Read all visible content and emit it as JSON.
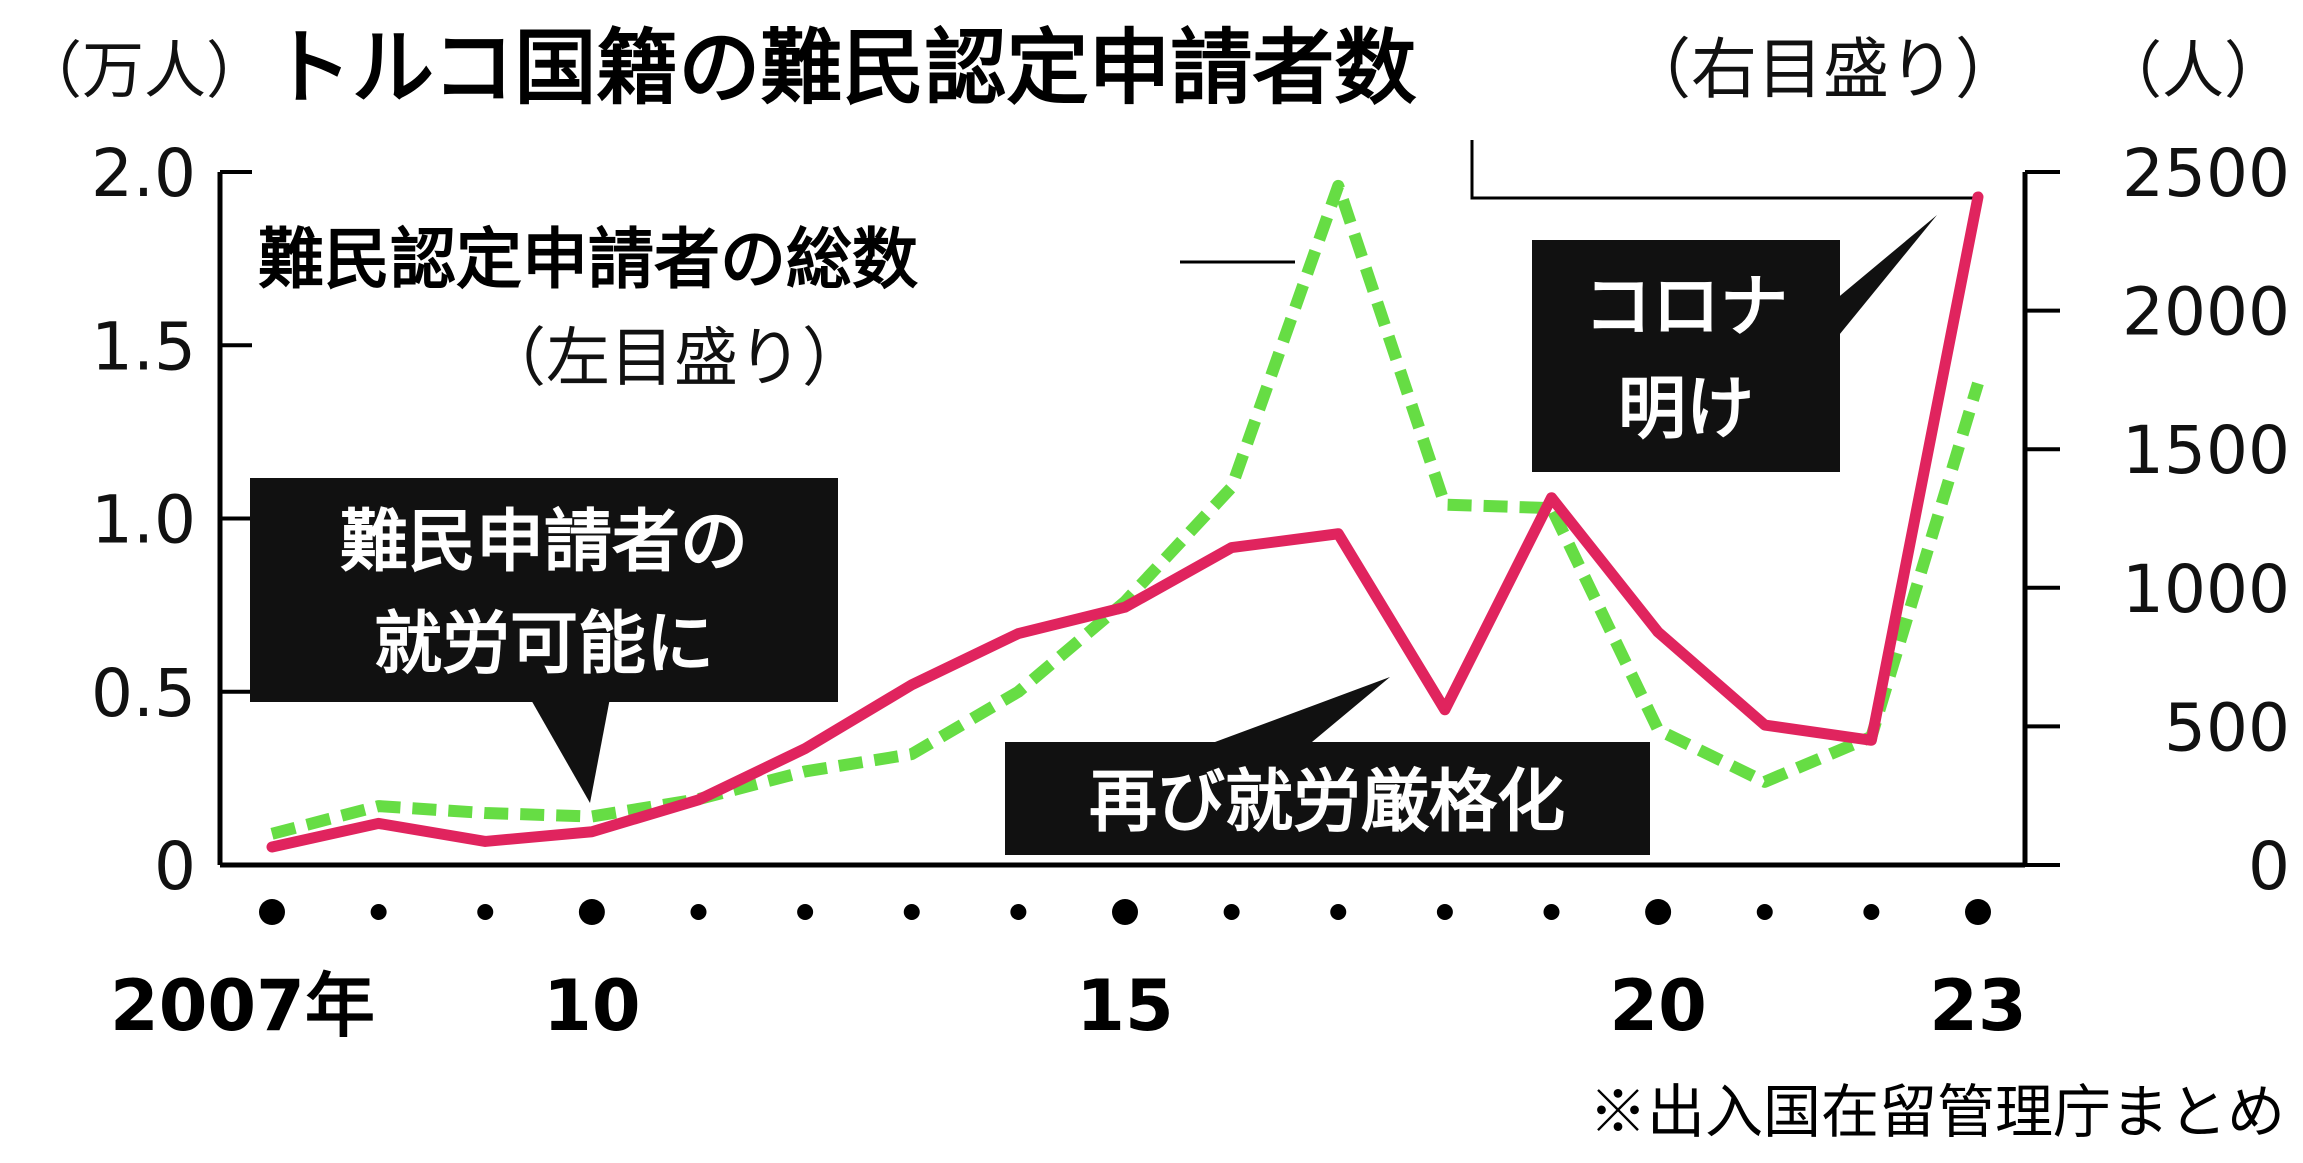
{
  "chart_data": {
    "type": "line",
    "title": "トルコ国籍の難民認定申請者数",
    "title_suffix": "（右目盛り）",
    "left_unit": "（万人）",
    "right_unit": "（人）",
    "x": [
      2007,
      2008,
      2009,
      2010,
      2011,
      2012,
      2013,
      2014,
      2015,
      2016,
      2017,
      2018,
      2019,
      2020,
      2021,
      2022,
      2023
    ],
    "x_major_labels": [
      {
        "year": 2007,
        "label": "2007年"
      },
      {
        "year": 2010,
        "label": "10"
      },
      {
        "year": 2015,
        "label": "15"
      },
      {
        "year": 2020,
        "label": "20"
      },
      {
        "year": 2023,
        "label": "23"
      }
    ],
    "left_axis": {
      "min": 0,
      "max": 2.0,
      "ticks": [
        "0",
        "0.5",
        "1.0",
        "1.5",
        "2.0"
      ],
      "tick_values": [
        0,
        0.5,
        1.0,
        1.5,
        2.0
      ]
    },
    "right_axis": {
      "min": 0,
      "max": 2500,
      "ticks": [
        "0",
        "500",
        "1000",
        "1500",
        "2000",
        "2500"
      ],
      "tick_values": [
        0,
        500,
        1000,
        1500,
        2000,
        2500
      ]
    },
    "series": [
      {
        "name": "トルコ国籍の難民認定申請者数",
        "axis": "right",
        "color": "#e0245e",
        "style": "solid",
        "values": [
          65,
          150,
          85,
          120,
          235,
          420,
          650,
          835,
          930,
          1145,
          1195,
          560,
          1325,
          840,
          505,
          450,
          2410
        ]
      },
      {
        "name": "難民認定申請者の総数",
        "axis": "left",
        "color": "#66dd44",
        "style": "dashed",
        "values": [
          0.09,
          0.17,
          0.15,
          0.14,
          0.19,
          0.27,
          0.32,
          0.5,
          0.76,
          1.09,
          1.96,
          1.04,
          1.03,
          0.39,
          0.24,
          0.37,
          1.39
        ]
      }
    ],
    "annotations": {
      "total_label": "難民認定申請者の総数",
      "total_label_sub": "（左目盛り）",
      "box_work_allowed": [
        "難民申請者の",
        "就労可能に"
      ],
      "box_work_restricted": "再び就労厳格化",
      "box_post_covid": [
        "コロナ",
        "明け"
      ]
    },
    "source": "※出入国在留管理庁まとめ",
    "grid": false
  }
}
